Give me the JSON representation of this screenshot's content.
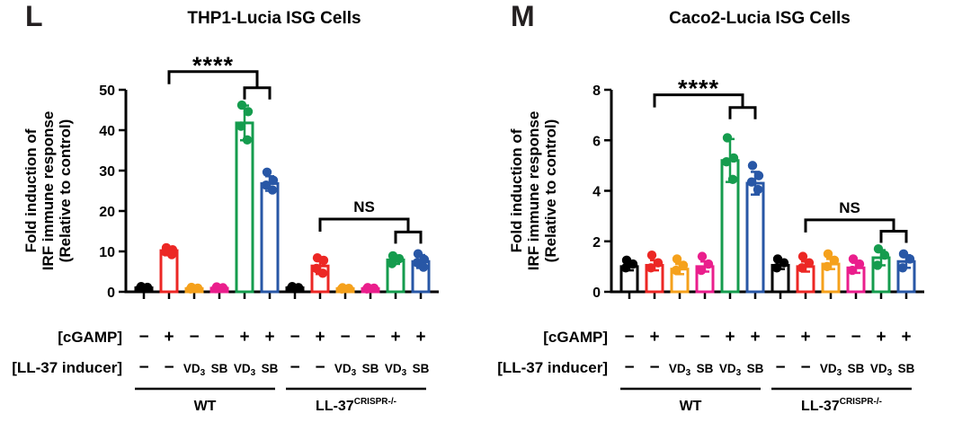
{
  "chart_data": [
    {
      "type": "bar",
      "panel_letter": "L",
      "title": "THP1-Lucia ISG Cells",
      "ylabel_lines": [
        "Fold induction of",
        "IRF immune response",
        "(Relative to control)"
      ],
      "ylim": [
        0,
        50
      ],
      "yticks": [
        0,
        10,
        20,
        30,
        40,
        50
      ],
      "row_labels": {
        "cgamp": "[cGAMP]",
        "inducer": "[LL-37 inducer]"
      },
      "groups": [
        {
          "label": "WT",
          "sup": "",
          "from": 0,
          "to": 5
        },
        {
          "label": "LL-37",
          "sup": "CRISPR-/-",
          "from": 6,
          "to": 11
        }
      ],
      "bars": [
        {
          "cgamp": "−",
          "inducer": "−",
          "color": "#000000",
          "value": 1.0,
          "err": 0.2,
          "dots": [
            1.3,
            1.1,
            0.9
          ]
        },
        {
          "cgamp": "+",
          "inducer": "−",
          "color": "#EC2724",
          "value": 10.2,
          "err": 0.8,
          "dots": [
            10.9,
            10.4,
            9.9,
            9.2
          ]
        },
        {
          "cgamp": "−",
          "inducer": "VD3",
          "color": "#F5A11C",
          "value": 0.8,
          "err": 0.2,
          "dots": [
            1.1,
            0.9,
            0.7
          ]
        },
        {
          "cgamp": "−",
          "inducer": "SB",
          "color": "#EA1E8C",
          "value": 0.9,
          "err": 0.2,
          "dots": [
            1.2,
            1.0,
            0.8
          ]
        },
        {
          "cgamp": "+",
          "inducer": "VD3",
          "color": "#159C4E",
          "value": 41.8,
          "err": 4.3,
          "dots": [
            46.2,
            44.6,
            41.0,
            37.6
          ]
        },
        {
          "cgamp": "+",
          "inducer": "SB",
          "color": "#2857A6",
          "value": 26.8,
          "err": 1.8,
          "dots": [
            29.6,
            27.6,
            26.4,
            25.2
          ]
        },
        {
          "cgamp": "−",
          "inducer": "−",
          "color": "#000000",
          "value": 1.0,
          "err": 0.2,
          "dots": [
            1.3,
            1.05,
            0.9
          ]
        },
        {
          "cgamp": "+",
          "inducer": "−",
          "color": "#EC2724",
          "value": 6.4,
          "err": 2.0,
          "dots": [
            8.4,
            7.8,
            5.8,
            4.6
          ]
        },
        {
          "cgamp": "−",
          "inducer": "VD3",
          "color": "#F5A11C",
          "value": 0.8,
          "err": 0.15,
          "dots": [
            1.0,
            0.85,
            0.7
          ]
        },
        {
          "cgamp": "−",
          "inducer": "SB",
          "color": "#EA1E8C",
          "value": 0.8,
          "err": 0.15,
          "dots": [
            1.05,
            0.9,
            0.7
          ]
        },
        {
          "cgamp": "+",
          "inducer": "VD3",
          "color": "#159C4E",
          "value": 7.9,
          "err": 1.0,
          "dots": [
            8.9,
            8.2,
            7.0
          ]
        },
        {
          "cgamp": "+",
          "inducer": "SB",
          "color": "#2857A6",
          "value": 7.5,
          "err": 1.6,
          "dots": [
            9.4,
            8.0,
            7.2,
            6.1
          ]
        }
      ],
      "brackets": [
        {
          "label": "****",
          "left_bar": 1,
          "pair": [
            4,
            5
          ],
          "main_value": 54.5,
          "sub_value": 50.5
        },
        {
          "label": "NS",
          "left_bar": 7,
          "pair": [
            10,
            11
          ],
          "main_value": 18.0,
          "sub_value": 14.8
        }
      ]
    },
    {
      "type": "bar",
      "panel_letter": "M",
      "title": "Caco2-Lucia ISG Cells",
      "ylabel_lines": [
        "Fold induction of",
        "IRF immune response",
        "(Relative to control)"
      ],
      "ylim": [
        0,
        8
      ],
      "yticks": [
        0,
        2,
        4,
        6,
        8
      ],
      "row_labels": {
        "cgamp": "[cGAMP]",
        "inducer": "[LL-37 inducer]"
      },
      "groups": [
        {
          "label": "WT",
          "sup": "",
          "from": 0,
          "to": 5
        },
        {
          "label": "LL-37",
          "sup": "CRISPR-/-",
          "from": 6,
          "to": 11
        }
      ],
      "bars": [
        {
          "cgamp": "−",
          "inducer": "−",
          "color": "#000000",
          "value": 1.0,
          "err": 0.15,
          "dots": [
            1.25,
            1.1,
            0.95
          ]
        },
        {
          "cgamp": "+",
          "inducer": "−",
          "color": "#EC2724",
          "value": 1.05,
          "err": 0.2,
          "dots": [
            1.45,
            1.15,
            0.95
          ]
        },
        {
          "cgamp": "−",
          "inducer": "VD3",
          "color": "#F5A11C",
          "value": 0.9,
          "err": 0.2,
          "dots": [
            1.3,
            1.05,
            0.85
          ]
        },
        {
          "cgamp": "−",
          "inducer": "SB",
          "color": "#EA1E8C",
          "value": 1.0,
          "err": 0.2,
          "dots": [
            1.4,
            1.1,
            0.85
          ]
        },
        {
          "cgamp": "+",
          "inducer": "VD3",
          "color": "#159C4E",
          "value": 5.2,
          "err": 0.85,
          "dots": [
            6.1,
            5.3,
            5.15,
            4.45
          ]
        },
        {
          "cgamp": "+",
          "inducer": "SB",
          "color": "#2857A6",
          "value": 4.3,
          "err": 0.45,
          "dots": [
            5.0,
            4.6,
            4.35,
            4.05
          ]
        },
        {
          "cgamp": "−",
          "inducer": "−",
          "color": "#000000",
          "value": 1.05,
          "err": 0.15,
          "dots": [
            1.3,
            1.15,
            0.95
          ]
        },
        {
          "cgamp": "+",
          "inducer": "−",
          "color": "#EC2724",
          "value": 1.0,
          "err": 0.2,
          "dots": [
            1.4,
            1.15,
            0.95
          ]
        },
        {
          "cgamp": "−",
          "inducer": "VD3",
          "color": "#F5A11C",
          "value": 1.1,
          "err": 0.2,
          "dots": [
            1.5,
            1.25,
            1.0
          ]
        },
        {
          "cgamp": "−",
          "inducer": "SB",
          "color": "#EA1E8C",
          "value": 0.95,
          "err": 0.2,
          "dots": [
            1.3,
            1.1,
            0.85
          ]
        },
        {
          "cgamp": "+",
          "inducer": "VD3",
          "color": "#159C4E",
          "value": 1.35,
          "err": 0.3,
          "dots": [
            1.7,
            1.45,
            1.05
          ]
        },
        {
          "cgamp": "+",
          "inducer": "SB",
          "color": "#2857A6",
          "value": 1.2,
          "err": 0.25,
          "dots": [
            1.5,
            1.3,
            0.95
          ]
        }
      ],
      "brackets": [
        {
          "label": "****",
          "left_bar": 1,
          "pair": [
            4,
            5
          ],
          "main_value": 7.8,
          "sub_value": 7.3
        },
        {
          "label": "NS",
          "left_bar": 7,
          "pair": [
            10,
            11
          ],
          "main_value": 2.85,
          "sub_value": 2.4
        }
      ]
    }
  ]
}
